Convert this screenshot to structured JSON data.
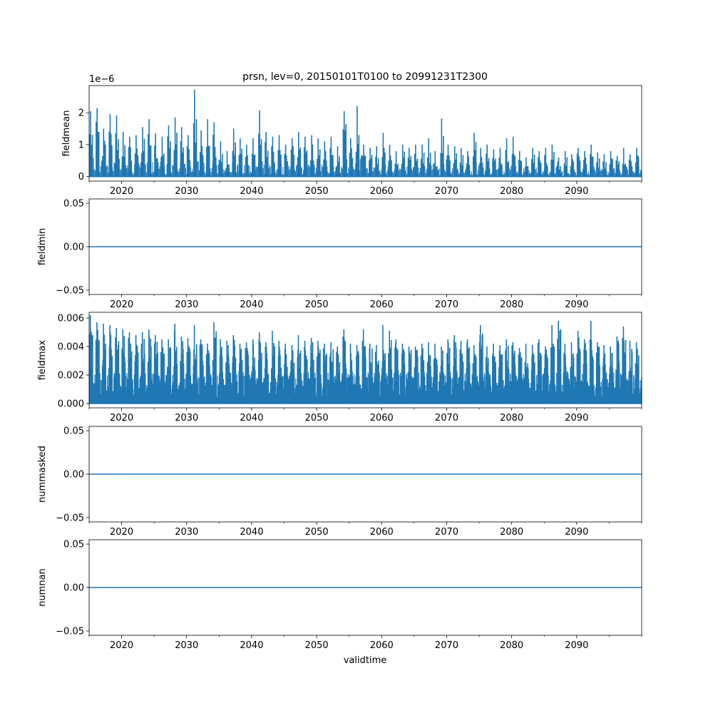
{
  "figure": {
    "title": "prsn, lev=0, 20150101T0100 to 20991231T2300",
    "xlabel": "validtime",
    "line_color": "#1f77b4"
  },
  "chart_data": [
    {
      "type": "line",
      "name": "fieldmean",
      "ylabel": "fieldmean",
      "offset_label": "1e−6",
      "xlim": [
        2015.0,
        2100.0
      ],
      "ylim": [
        -0.14,
        2.85
      ],
      "yticks": [
        0,
        1,
        2
      ],
      "ytick_labels": [
        "0",
        "1",
        "2"
      ],
      "xticks_major": [
        2020,
        2030,
        2040,
        2050,
        2060,
        2070,
        2080,
        2090
      ],
      "xticks_minor": [
        2015,
        2025,
        2035,
        2045,
        2055,
        2065,
        2075,
        2085,
        2095,
        2100
      ],
      "xtick_labels": [
        "2020",
        "2030",
        "2040",
        "2050",
        "2060",
        "2070",
        "2080",
        "2090"
      ],
      "style": "spiky",
      "baseline": 0,
      "spikes_per_year": 4,
      "annual_peaks": [
        2.05,
        2.14,
        1.5,
        1.96,
        1.92,
        1.4,
        1.25,
        1.3,
        1.55,
        1.8,
        1.35,
        1.25,
        1.6,
        1.85,
        1.55,
        1.3,
        2.72,
        1.45,
        1.8,
        1.7,
        1.1,
        0.8,
        1.5,
        1.2,
        1.0,
        1.2,
        2.07,
        1.4,
        1.25,
        1.3,
        1.0,
        1.2,
        1.4,
        1.25,
        1.3,
        1.2,
        1.1,
        1.25,
        0.95,
        2.05,
        1.2,
        2.21,
        1.0,
        0.9,
        0.95,
        1.37,
        1.0,
        0.8,
        1.0,
        0.9,
        1.0,
        1.0,
        1.2,
        0.8,
        1.82,
        1.0,
        0.95,
        0.9,
        0.8,
        1.37,
        0.9,
        1.0,
        0.85,
        0.9,
        1.2,
        1.25,
        0.8,
        0.6,
        0.9,
        0.8,
        0.9,
        1.0,
        0.6,
        0.8,
        0.7,
        0.9,
        0.8,
        1.0,
        0.75,
        0.7,
        0.8,
        0.65,
        0.9,
        0.7,
        0.9
      ]
    },
    {
      "type": "line",
      "name": "fieldmin",
      "ylabel": "fieldmin",
      "xlim": [
        2015.0,
        2100.0
      ],
      "ylim": [
        -0.055,
        0.055
      ],
      "yticks": [
        -0.05,
        0.0,
        0.05
      ],
      "ytick_labels": [
        "−0.05",
        "0.00",
        "0.05"
      ],
      "xticks_major": [
        2020,
        2030,
        2040,
        2050,
        2060,
        2070,
        2080,
        2090
      ],
      "xticks_minor": [
        2015,
        2025,
        2035,
        2045,
        2055,
        2065,
        2075,
        2085,
        2095,
        2100
      ],
      "xtick_labels": [
        "2020",
        "2030",
        "2040",
        "2050",
        "2060",
        "2070",
        "2080",
        "2090"
      ],
      "style": "flat",
      "value": 0.0
    },
    {
      "type": "line",
      "name": "fieldmax",
      "ylabel": "fieldmax",
      "xlim": [
        2015.0,
        2100.0
      ],
      "ylim": [
        -0.0003,
        0.0064
      ],
      "yticks": [
        0.0,
        0.002,
        0.004,
        0.006
      ],
      "ytick_labels": [
        "0.000",
        "0.002",
        "0.004",
        "0.006"
      ],
      "xticks_major": [
        2020,
        2030,
        2040,
        2050,
        2060,
        2070,
        2080,
        2090
      ],
      "xticks_minor": [
        2015,
        2025,
        2035,
        2045,
        2055,
        2065,
        2075,
        2085,
        2095,
        2100
      ],
      "xtick_labels": [
        "2020",
        "2030",
        "2040",
        "2050",
        "2060",
        "2070",
        "2080",
        "2090"
      ],
      "style": "dense",
      "baseline": 0,
      "spikes_per_year": 8,
      "annual_peaks": [
        0.0062,
        0.0057,
        0.0056,
        0.0055,
        0.0053,
        0.0052,
        0.005,
        0.0048,
        0.005,
        0.0052,
        0.0048,
        0.0045,
        0.0045,
        0.0056,
        0.0047,
        0.0046,
        0.0055,
        0.0045,
        0.0042,
        0.0057,
        0.0045,
        0.0044,
        0.0048,
        0.0042,
        0.0043,
        0.0045,
        0.005,
        0.0043,
        0.0051,
        0.0044,
        0.0042,
        0.0041,
        0.0048,
        0.0044,
        0.0046,
        0.0044,
        0.0042,
        0.0043,
        0.004,
        0.0052,
        0.0042,
        0.0041,
        0.0052,
        0.0042,
        0.0041,
        0.0055,
        0.0051,
        0.0045,
        0.0042,
        0.004,
        0.004,
        0.0042,
        0.0043,
        0.0042,
        0.004,
        0.0045,
        0.0048,
        0.0044,
        0.0045,
        0.0041,
        0.0055,
        0.004,
        0.0042,
        0.0041,
        0.0045,
        0.0043,
        0.0039,
        0.0042,
        0.0041,
        0.0045,
        0.004,
        0.0055,
        0.0058,
        0.0042,
        0.0043,
        0.0051,
        0.0045,
        0.0058,
        0.0043,
        0.0041,
        0.004,
        0.0047,
        0.0054,
        0.0044,
        0.0043
      ]
    },
    {
      "type": "line",
      "name": "nummasked",
      "ylabel": "nummasked",
      "xlim": [
        2015.0,
        2100.0
      ],
      "ylim": [
        -0.055,
        0.055
      ],
      "yticks": [
        -0.05,
        0.0,
        0.05
      ],
      "ytick_labels": [
        "−0.05",
        "0.00",
        "0.05"
      ],
      "xticks_major": [
        2020,
        2030,
        2040,
        2050,
        2060,
        2070,
        2080,
        2090
      ],
      "xticks_minor": [
        2015,
        2025,
        2035,
        2045,
        2055,
        2065,
        2075,
        2085,
        2095,
        2100
      ],
      "xtick_labels": [
        "2020",
        "2030",
        "2040",
        "2050",
        "2060",
        "2070",
        "2080",
        "2090"
      ],
      "style": "flat",
      "value": 0.0
    },
    {
      "type": "line",
      "name": "numnan",
      "ylabel": "numnan",
      "xlim": [
        2015.0,
        2100.0
      ],
      "ylim": [
        -0.055,
        0.055
      ],
      "yticks": [
        -0.05,
        0.0,
        0.05
      ],
      "ytick_labels": [
        "−0.05",
        "0.00",
        "0.05"
      ],
      "xticks_major": [
        2020,
        2030,
        2040,
        2050,
        2060,
        2070,
        2080,
        2090
      ],
      "xticks_minor": [
        2015,
        2025,
        2035,
        2045,
        2055,
        2065,
        2075,
        2085,
        2095,
        2100
      ],
      "xtick_labels": [
        "2020",
        "2030",
        "2040",
        "2050",
        "2060",
        "2070",
        "2080",
        "2090"
      ],
      "style": "flat",
      "value": 0.0
    }
  ]
}
